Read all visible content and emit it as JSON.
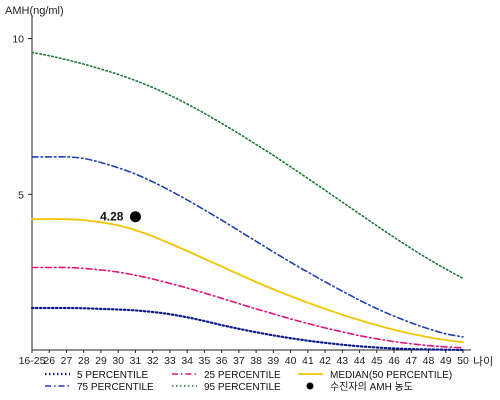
{
  "chart_data": {
    "type": "line",
    "ylabel": "AMH(ng/ml)",
    "xlabel": "나이",
    "ylim": [
      0,
      10.5
    ],
    "y_ticks": [
      5,
      10
    ],
    "categories": [
      "16-25",
      "26",
      "27",
      "28",
      "29",
      "30",
      "31",
      "32",
      "33",
      "34",
      "35",
      "36",
      "37",
      "38",
      "39",
      "40",
      "41",
      "42",
      "43",
      "44",
      "45",
      "46",
      "47",
      "48",
      "49",
      "50"
    ],
    "series": [
      {
        "name": "5 PERCENTILE",
        "color": "#0b1a8c",
        "dash": "1.5,2.5",
        "width": 2.2,
        "values": [
          1.35,
          1.35,
          1.35,
          1.34,
          1.32,
          1.3,
          1.27,
          1.22,
          1.15,
          1.05,
          0.93,
          0.8,
          0.68,
          0.57,
          0.47,
          0.38,
          0.3,
          0.23,
          0.17,
          0.12,
          0.08,
          0.05,
          0.03,
          0.02,
          0.01,
          0.0
        ]
      },
      {
        "name": "25 PERCENTILE",
        "color": "#e0147a",
        "dash": "6,3,1.5,3",
        "width": 1.6,
        "values": [
          2.65,
          2.65,
          2.65,
          2.62,
          2.57,
          2.5,
          2.4,
          2.28,
          2.14,
          1.99,
          1.83,
          1.66,
          1.49,
          1.32,
          1.16,
          1.0,
          0.85,
          0.71,
          0.58,
          0.46,
          0.36,
          0.27,
          0.2,
          0.14,
          0.1,
          0.07
        ]
      },
      {
        "name": "MEDIAN(50 PERCENTILE)",
        "color": "#f2c500",
        "dash": "",
        "width": 1.8,
        "values": [
          4.2,
          4.2,
          4.2,
          4.17,
          4.1,
          4.0,
          3.85,
          3.65,
          3.42,
          3.18,
          2.93,
          2.68,
          2.43,
          2.18,
          1.95,
          1.73,
          1.52,
          1.32,
          1.13,
          0.96,
          0.8,
          0.65,
          0.52,
          0.41,
          0.32,
          0.25
        ]
      },
      {
        "name": "75 PERCENTILE",
        "color": "#1f3fb0",
        "dash": "6,3,1.5,3",
        "width": 1.6,
        "values": [
          6.2,
          6.2,
          6.2,
          6.15,
          6.02,
          5.85,
          5.65,
          5.4,
          5.12,
          4.82,
          4.5,
          4.17,
          3.83,
          3.49,
          3.15,
          2.82,
          2.5,
          2.19,
          1.89,
          1.6,
          1.33,
          1.09,
          0.87,
          0.68,
          0.52,
          0.42
        ]
      },
      {
        "name": "95 PERCENTILE",
        "color": "#1f7a3a",
        "dash": "1.5,2.5",
        "width": 1.6,
        "values": [
          9.55,
          9.45,
          9.32,
          9.18,
          9.02,
          8.85,
          8.65,
          8.43,
          8.18,
          7.9,
          7.6,
          7.28,
          6.95,
          6.6,
          6.25,
          5.88,
          5.51,
          5.13,
          4.75,
          4.37,
          3.99,
          3.62,
          3.26,
          2.92,
          2.6,
          2.3
        ]
      }
    ],
    "point": {
      "category": "31",
      "value": 4.28,
      "label": "4.28",
      "name": "수진자의 AMH 농도",
      "color": "#000000"
    },
    "legend": {
      "placement": "bottom",
      "order": [
        "5 PERCENTILE",
        "25 PERCENTILE",
        "MEDIAN(50 PERCENTILE)",
        "75 PERCENTILE",
        "95 PERCENTILE",
        "수진자의 AMH 농도"
      ]
    },
    "grid": false
  }
}
